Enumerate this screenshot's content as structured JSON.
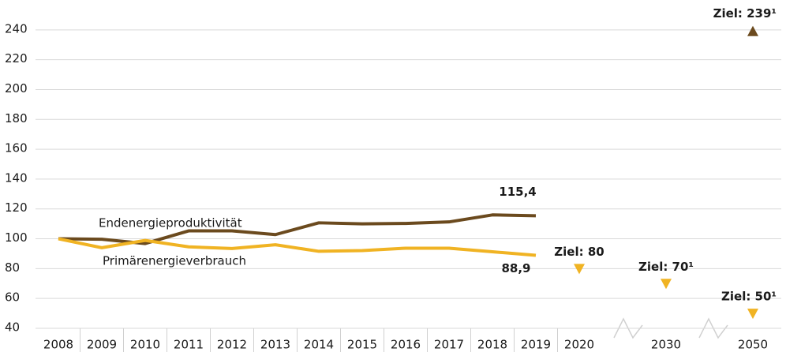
{
  "chart_data": {
    "type": "line",
    "categories": [
      "2008",
      "2009",
      "2010",
      "2011",
      "2012",
      "2013",
      "2014",
      "2015",
      "2016",
      "2017",
      "2018",
      "2019",
      "2020",
      null,
      "2030",
      null,
      "2050"
    ],
    "series": [
      {
        "name": "Endenergieproduktivität",
        "color": "#6b4a1e",
        "values": [
          100,
          99.7,
          96.8,
          105.3,
          105.3,
          102.8,
          110.7,
          110.0,
          110.3,
          111.3,
          116.0,
          115.4,
          null,
          null,
          null,
          null,
          null
        ],
        "value_labels": [
          null,
          null,
          null,
          null,
          null,
          null,
          null,
          null,
          null,
          null,
          null,
          "115,4",
          null,
          null,
          null,
          null,
          null
        ]
      },
      {
        "name": "Primärenergieverbrauch",
        "color": "#f0b323",
        "values": [
          100,
          94.0,
          98.9,
          94.6,
          93.5,
          96.0,
          91.6,
          92.1,
          93.7,
          93.7,
          91.3,
          88.9,
          null,
          null,
          null,
          null,
          null
        ],
        "value_labels": [
          null,
          null,
          null,
          null,
          null,
          null,
          null,
          null,
          null,
          null,
          null,
          "88,9",
          null,
          null,
          null,
          null,
          null
        ]
      }
    ],
    "targets": [
      {
        "category": "2020",
        "value": 80,
        "label": "Ziel: 80",
        "color": "#f0b323",
        "direction": "down"
      },
      {
        "category": "2030",
        "value": 70,
        "label": "Ziel: 70¹",
        "color": "#f0b323",
        "direction": "down"
      },
      {
        "category": "2050",
        "value": 50,
        "label": "Ziel: 50¹",
        "color": "#f0b323",
        "direction": "down"
      },
      {
        "category": "2050",
        "value": 239,
        "label": "Ziel: 239¹",
        "color": "#6b4a1e",
        "direction": "up"
      }
    ],
    "ylim": [
      40,
      260
    ],
    "yticks": [
      40,
      60,
      80,
      100,
      120,
      140,
      160,
      180,
      200,
      220,
      240
    ],
    "grid": true
  }
}
